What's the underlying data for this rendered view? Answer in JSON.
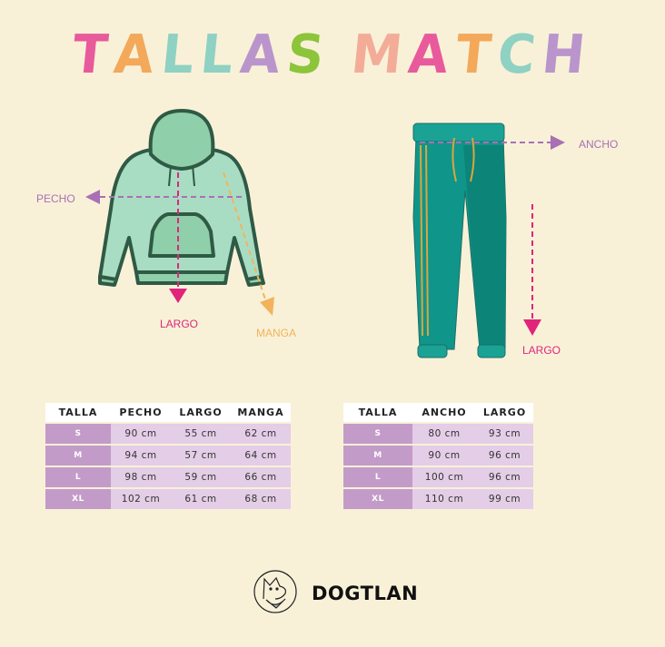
{
  "title": {
    "letters": [
      {
        "ch": "T",
        "color": "#e85a9b"
      },
      {
        "ch": "A",
        "color": "#f3a85a"
      },
      {
        "ch": "L",
        "color": "#8fd1c2"
      },
      {
        "ch": "L",
        "color": "#8fd1c2"
      },
      {
        "ch": "A",
        "color": "#b995cc"
      },
      {
        "ch": "S",
        "color": "#8cc43a"
      },
      {
        "ch": " ",
        "color": ""
      },
      {
        "ch": "M",
        "color": "#f3ac98"
      },
      {
        "ch": "A",
        "color": "#e85a9b"
      },
      {
        "ch": "T",
        "color": "#f3a85a"
      },
      {
        "ch": "C",
        "color": "#8fd1c2"
      },
      {
        "ch": "H",
        "color": "#b995cc"
      }
    ]
  },
  "hoodie": {
    "labels": {
      "pecho": "PECHO",
      "largo": "LARGO",
      "manga": "MANGA"
    }
  },
  "pants": {
    "labels": {
      "ancho": "ANCHO",
      "largo": "LARGO"
    }
  },
  "colors": {
    "background": "#f8f1d8",
    "size_cell": "#c39bc8",
    "value_cell": "#e4cde6",
    "pecho": "#a970b5",
    "largo": "#e0257a",
    "manga": "#f3b35c"
  },
  "hoodie_table": {
    "headers": [
      "TALLA",
      "PECHO",
      "LARGO",
      "MANGA"
    ],
    "rows": [
      [
        "S",
        "90 cm",
        "55 cm",
        "62 cm"
      ],
      [
        "M",
        "94 cm",
        "57 cm",
        "64 cm"
      ],
      [
        "L",
        "98 cm",
        "59 cm",
        "66 cm"
      ],
      [
        "XL",
        "102 cm",
        "61 cm",
        "68 cm"
      ]
    ]
  },
  "pants_table": {
    "headers": [
      "TALLA",
      "ANCHO",
      "LARGO"
    ],
    "rows": [
      [
        "S",
        "80 cm",
        "93 cm"
      ],
      [
        "M",
        "90 cm",
        "96 cm"
      ],
      [
        "L",
        "100 cm",
        "96 cm"
      ],
      [
        "XL",
        "110 cm",
        "99 cm"
      ]
    ]
  },
  "brand": {
    "name": "DOGTLAN",
    "logo": "dog-logo-icon"
  }
}
